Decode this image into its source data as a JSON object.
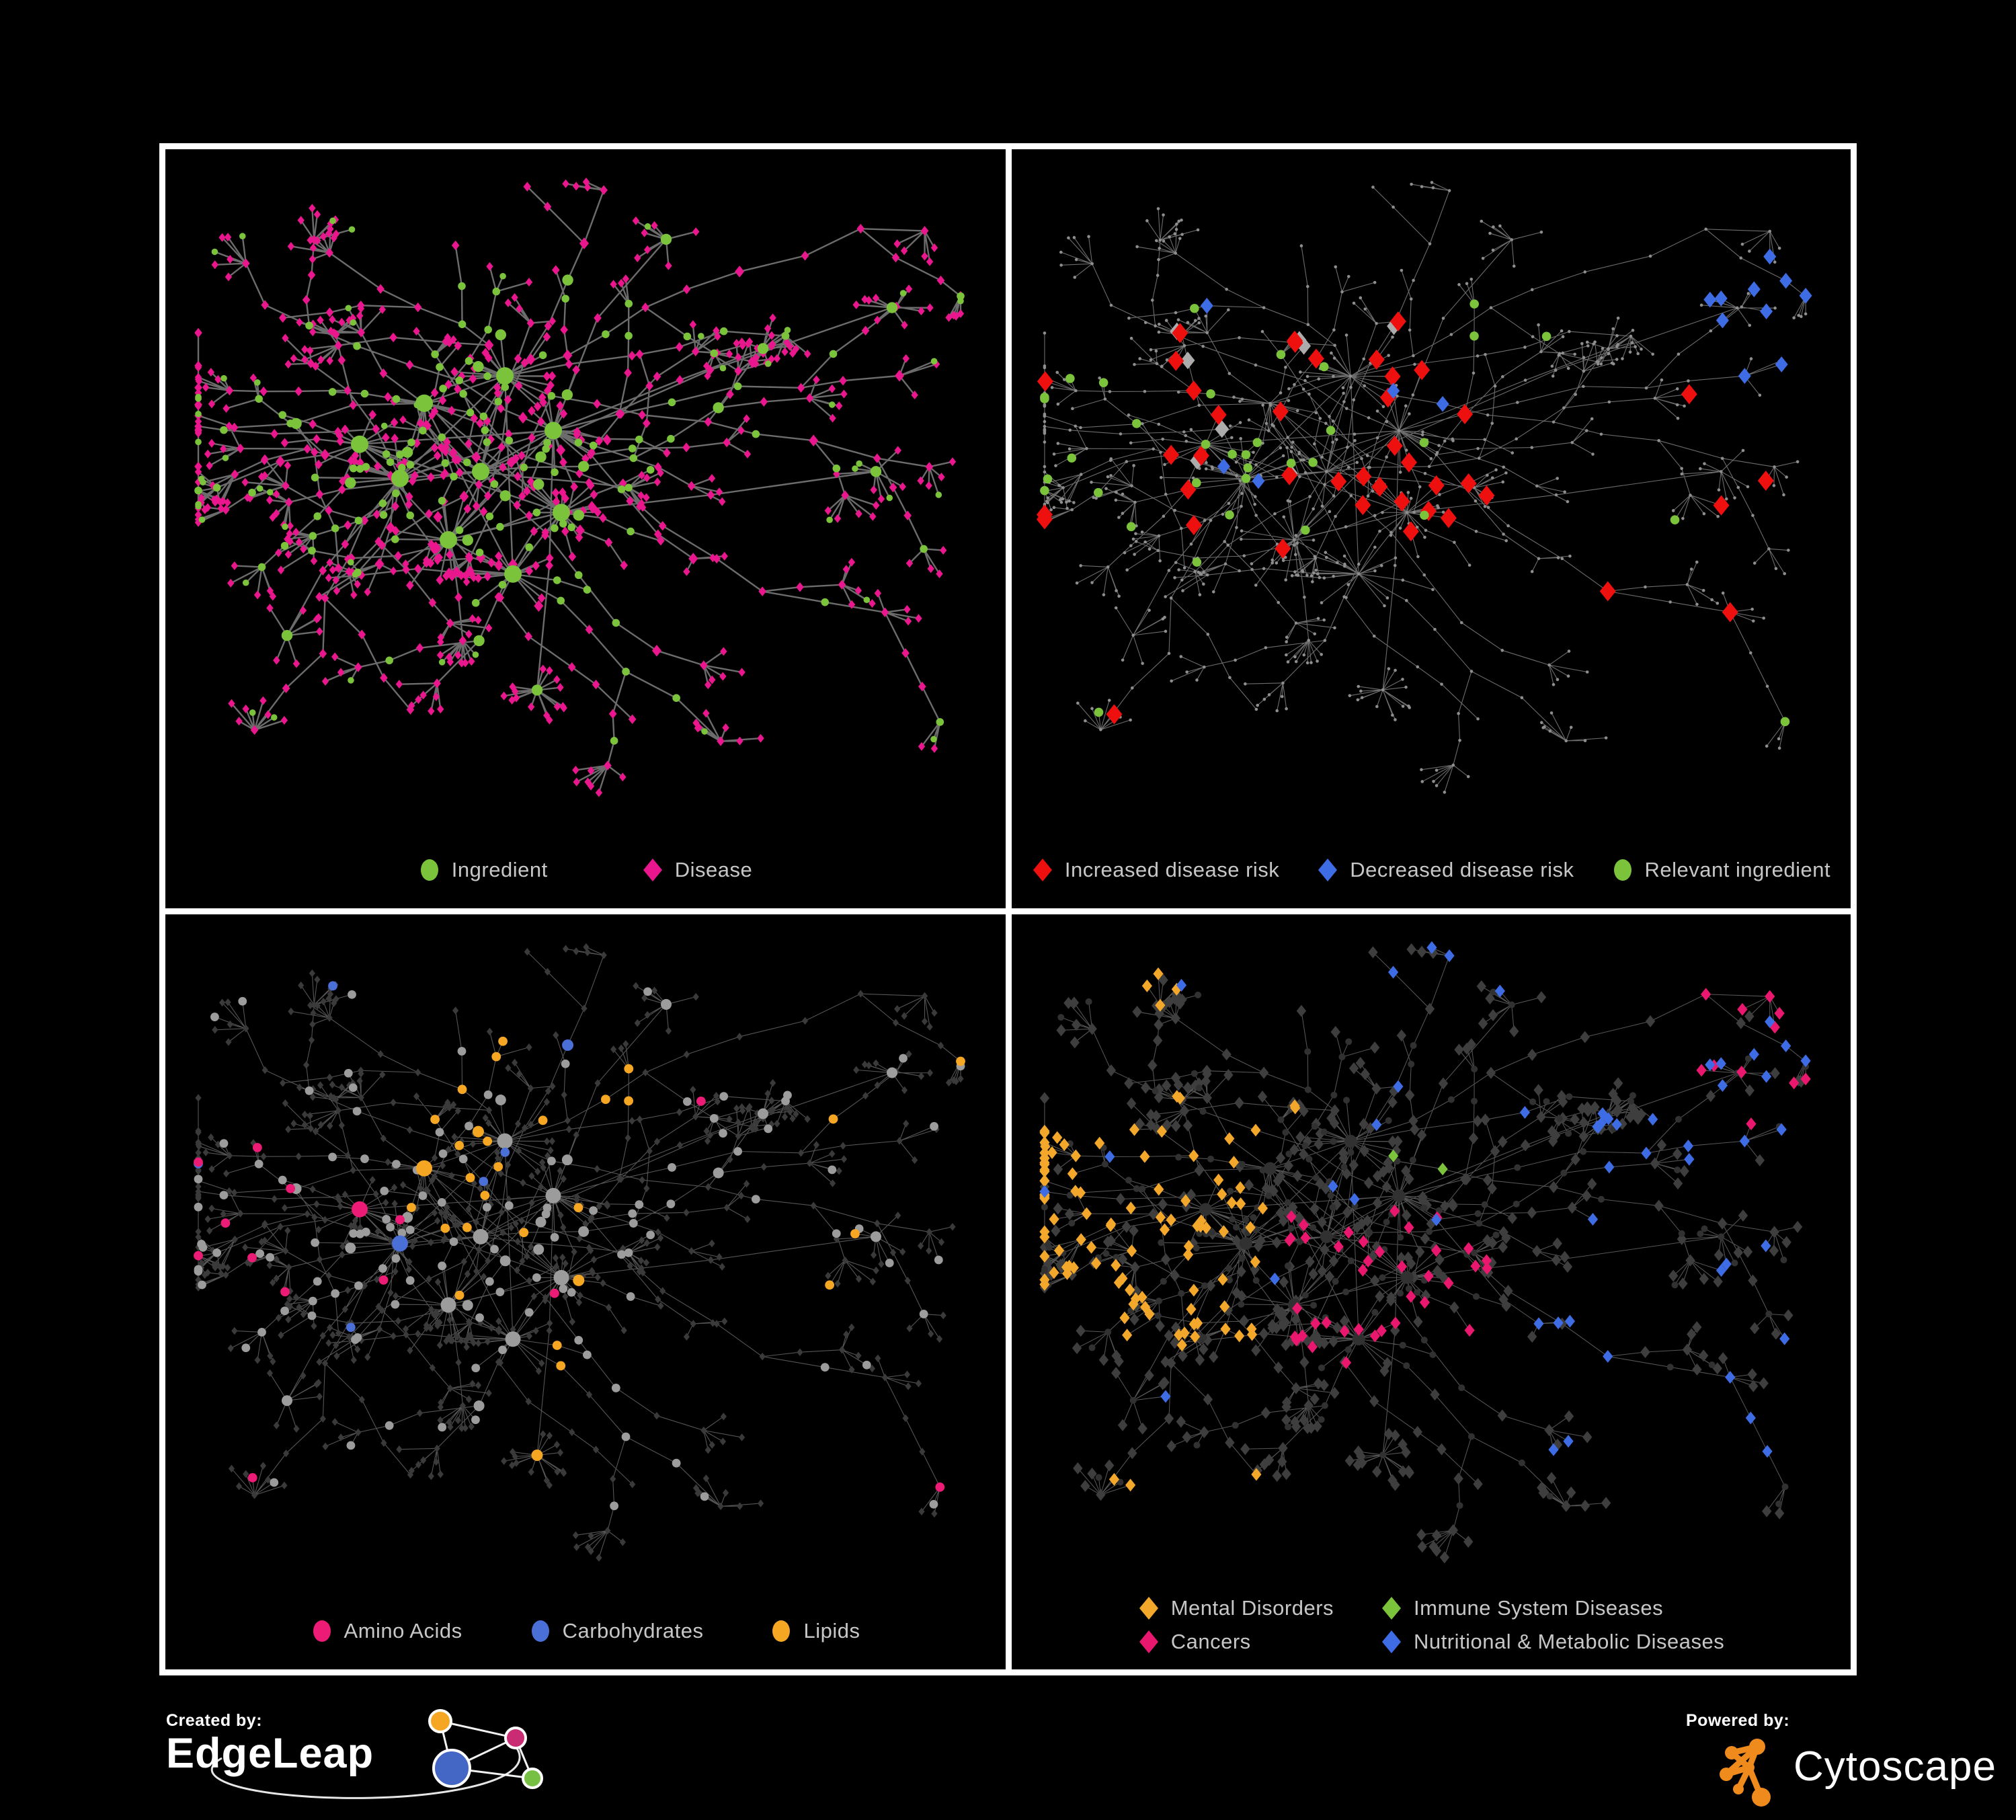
{
  "figure": {
    "background": "#000000",
    "network_seed": 12,
    "palette": {
      "ingredient_green": "#7CC33C",
      "disease_pink": "#EA168D",
      "risk_red": "#EE0F0F",
      "risk_blue": "#3E6CE4",
      "neutral_gray": "#ACACAC",
      "lipid_orange": "#F5A623",
      "amino_pink": "#EB1B76",
      "carb_blue": "#4A6FD6",
      "mental_orange": "#F3A72B",
      "cancer_pink": "#E9186E",
      "immune_green": "#7CC33C",
      "nutritional_blue": "#3E6CE4",
      "tiny_gray": "#8E8E8E",
      "mid_gray": "#9C9C9C",
      "dark_diamond": "#3A3A3A",
      "p4_dark": "#3E3E3E",
      "p4_circle": "#313131",
      "legend_text": "#C7C7C7"
    },
    "panels": [
      {
        "id": "ingredient-disease",
        "style": {
          "edge": "#6C6C6C",
          "edge_width": 2.4,
          "edge_opacity": 1
        },
        "legend": [
          {
            "label": "Ingredient",
            "shape": "circle",
            "color": "#7CC33C"
          },
          {
            "label": "Disease",
            "shape": "diamond",
            "color": "#EA168D"
          }
        ]
      },
      {
        "id": "disease-risk",
        "style": {
          "edge": "#787878",
          "edge_width": 1.1,
          "edge_opacity": 0.9
        },
        "legend": [
          {
            "label": "Increased disease risk",
            "shape": "diamond",
            "color": "#EE0F0F"
          },
          {
            "label": "Decreased disease risk",
            "shape": "diamond",
            "color": "#3E6CE4"
          },
          {
            "label": "Relevant ingredient",
            "shape": "circle",
            "color": "#7CC33C"
          }
        ]
      },
      {
        "id": "ingredient-classes",
        "style": {
          "edge": "#9A9A9A",
          "edge_width": 1.1,
          "edge_opacity": 0.55
        },
        "legend": [
          {
            "label": "Amino Acids",
            "shape": "circle",
            "color": "#EB1B76"
          },
          {
            "label": "Carbohydrates",
            "shape": "circle",
            "color": "#4A6FD6"
          },
          {
            "label": "Lipids",
            "shape": "circle",
            "color": "#F5A623"
          }
        ]
      },
      {
        "id": "disease-classes",
        "style": {
          "edge": "#8F8F8F",
          "edge_width": 1.05,
          "edge_opacity": 0.6
        },
        "legend": [
          {
            "label": "Mental Disorders",
            "shape": "diamond",
            "color": "#F3A72B"
          },
          {
            "label": "Immune System Diseases",
            "shape": "diamond",
            "color": "#7CC33C"
          },
          {
            "label": "Cancers",
            "shape": "diamond",
            "color": "#E9186E"
          },
          {
            "label": "Nutritional & Metabolic Diseases",
            "shape": "diamond",
            "color": "#3E6CE4"
          }
        ]
      }
    ]
  },
  "footer": {
    "created_by_label": "Created by:",
    "edgeleap_brand": "EdgeLeap",
    "powered_by_label": "Powered by:",
    "cytoscape_brand": "Cytoscape",
    "edgeleap_logo_colors": {
      "orange": "#F5A623",
      "magenta": "#C92C72",
      "blue": "#4467C6",
      "green": "#76C043"
    },
    "cytoscape_logo_color": "#EF8B1D"
  }
}
